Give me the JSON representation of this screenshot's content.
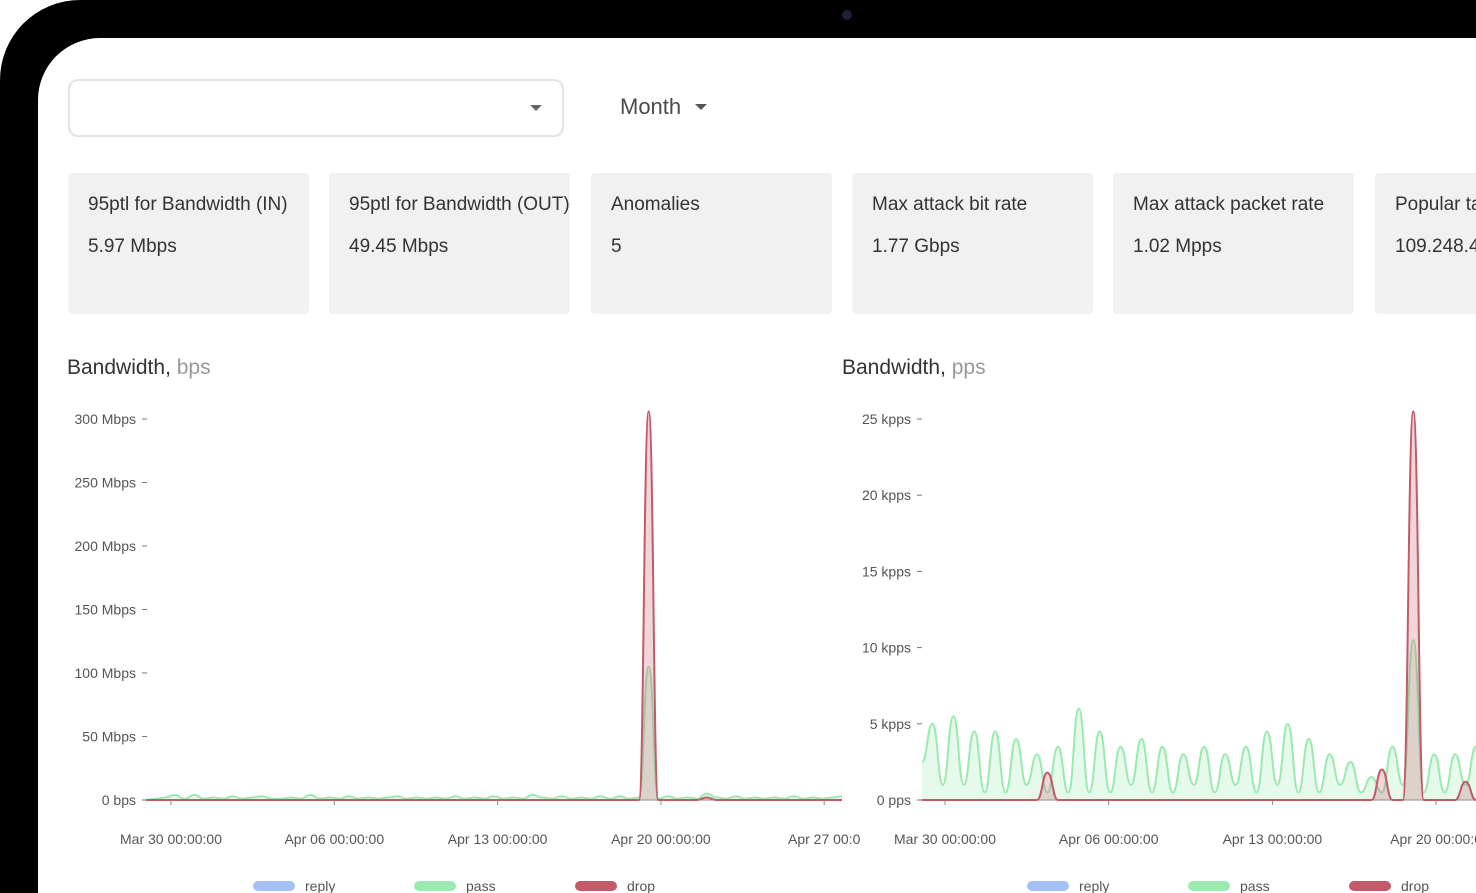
{
  "filters": {
    "entity_select_value": "",
    "period_label": "Month"
  },
  "cards": [
    {
      "label": "95ptl for Bandwidth (IN)",
      "value": "5.97 Mbps"
    },
    {
      "label": "95ptl for Bandwidth (OUT)",
      "value": "49.45 Mbps"
    },
    {
      "label": "Anomalies",
      "value": "5"
    },
    {
      "label": "Max attack bit rate",
      "value": "1.77 Gbps"
    },
    {
      "label": "Max attack packet rate",
      "value": "1.02 Mpps"
    },
    {
      "label": "Popular ta",
      "value": "109.248.4"
    }
  ],
  "chart_data": [
    {
      "type": "area",
      "title": "Bandwidth,",
      "unit": "bps",
      "y_unit": "Mbps",
      "ylim": [
        0,
        300
      ],
      "yticks": [
        {
          "value": 300,
          "label": "300 Mbps"
        },
        {
          "value": 250,
          "label": "250 Mbps"
        },
        {
          "value": 200,
          "label": "200 Mbps"
        },
        {
          "value": 150,
          "label": "150 Mbps"
        },
        {
          "value": 100,
          "label": "100 Mbps"
        },
        {
          "value": 50,
          "label": "50 Mbps"
        },
        {
          "value": 0,
          "label": "0 bps"
        }
      ],
      "xticks": [
        "Mar 30 00:00:00",
        "Apr 06 00:00:00",
        "Apr 13 00:00:00",
        "Apr 20 00:00:00",
        "Apr 27 00:0"
      ],
      "legend": [
        {
          "name": "reply",
          "color": "#a4c0f4"
        },
        {
          "name": "pass",
          "color": "#9aeab0"
        },
        {
          "name": "drop",
          "color": "#c25a6a"
        }
      ],
      "series": [
        {
          "name": "pass",
          "color": "#9aeab0",
          "fill": "rgba(154,234,176,0.25)",
          "values": [
            0,
            1,
            2,
            4,
            1,
            4,
            1,
            2,
            1,
            3,
            1,
            2,
            3,
            1,
            1,
            2,
            1,
            4,
            1,
            2,
            1,
            3,
            1,
            2,
            1,
            2,
            3,
            1,
            2,
            1,
            2,
            1,
            3,
            1,
            2,
            1,
            3,
            1,
            2,
            1,
            4,
            2,
            1,
            3,
            1,
            2,
            1,
            3,
            1,
            3,
            1,
            2,
            105,
            1,
            3,
            1,
            2,
            1,
            5,
            2,
            1,
            3,
            1,
            2,
            1,
            2,
            1,
            3,
            1,
            2,
            1,
            2,
            3
          ]
        },
        {
          "name": "drop",
          "color": "#c25a6a",
          "fill": "rgba(194,90,106,0.25)",
          "values": [
            0,
            0,
            0,
            0,
            0,
            0,
            0,
            0,
            0,
            0,
            0,
            0,
            0,
            0,
            0,
            0,
            0,
            0,
            0,
            0,
            0,
            0,
            0,
            0,
            0,
            0,
            0,
            0,
            0,
            0,
            0,
            0,
            0,
            0,
            0,
            0,
            0,
            0,
            0,
            0,
            0,
            0,
            0,
            0,
            0,
            0,
            0,
            0,
            0,
            0,
            0,
            0,
            306,
            0,
            0,
            0,
            0,
            0,
            2,
            0,
            0,
            0,
            0,
            0,
            0,
            0,
            0,
            0,
            0,
            0,
            0,
            0,
            0
          ]
        }
      ]
    },
    {
      "type": "area",
      "title": "Bandwidth,",
      "unit": "pps",
      "y_unit": "kpps",
      "ylim": [
        0,
        25
      ],
      "yticks": [
        {
          "value": 25,
          "label": "25 kpps"
        },
        {
          "value": 20,
          "label": "20 kpps"
        },
        {
          "value": 15,
          "label": "15 kpps"
        },
        {
          "value": 10,
          "label": "10 kpps"
        },
        {
          "value": 5,
          "label": "5 kpps"
        },
        {
          "value": 0,
          "label": "0 pps"
        }
      ],
      "xticks": [
        "Mar 30 00:00:00",
        "Apr 06 00:00:00",
        "Apr 13 00:00:00",
        "Apr 20 00:00:0"
      ],
      "legend": [
        {
          "name": "reply",
          "color": "#a4c0f4"
        },
        {
          "name": "pass",
          "color": "#9aeab0"
        },
        {
          "name": "drop",
          "color": "#c25a6a"
        }
      ],
      "series": [
        {
          "name": "pass",
          "color": "#9aeab0",
          "fill": "rgba(154,234,176,0.25)",
          "values": [
            2.5,
            5,
            1,
            5.5,
            1,
            4.5,
            0.5,
            4.5,
            0.5,
            4,
            1,
            3,
            0.5,
            3.5,
            0.5,
            6,
            0.5,
            4.5,
            0.5,
            3.5,
            1,
            4,
            0.5,
            3.5,
            0.5,
            3,
            1,
            3.5,
            0.5,
            3,
            1,
            3.5,
            0.5,
            4.5,
            1,
            5,
            0.5,
            4,
            0.5,
            3,
            1,
            2.5,
            0.5,
            1.5,
            0.5,
            3.5,
            1,
            10.5,
            0.5,
            3,
            0.5,
            3,
            1,
            3.5
          ]
        },
        {
          "name": "drop",
          "color": "#c25a6a",
          "fill": "rgba(194,90,106,0.25)",
          "values": [
            0,
            0,
            0,
            0,
            0,
            0,
            0,
            0,
            0,
            0,
            0,
            0,
            1.8,
            0,
            0,
            0,
            0,
            0,
            0,
            0,
            0,
            0,
            0,
            0,
            0,
            0,
            0,
            0,
            0,
            0,
            0,
            0,
            0,
            0,
            0,
            0,
            0,
            0,
            0,
            0,
            0,
            0,
            0,
            0,
            2,
            0,
            0,
            25.5,
            0,
            0,
            0,
            0,
            1.2,
            0
          ]
        }
      ]
    }
  ]
}
